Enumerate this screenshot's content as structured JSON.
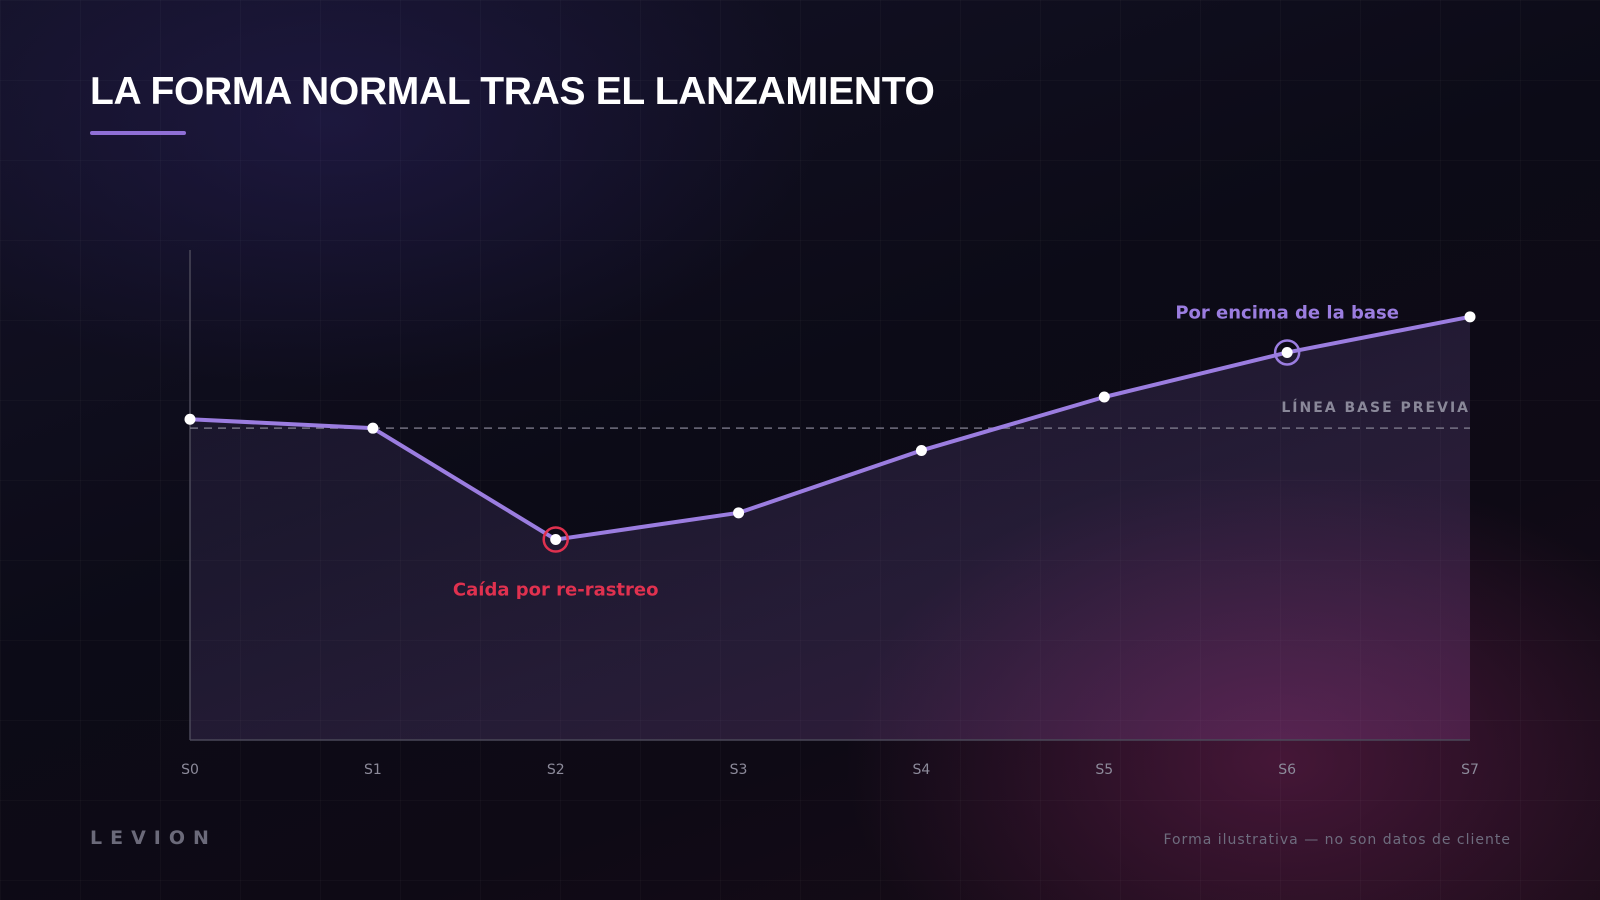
{
  "slide": {
    "title": "LA FORMA NORMAL TRAS EL LANZAMIENTO",
    "brand": "LEVION",
    "footnote": "Forma ilustrativa — no son datos de cliente"
  },
  "colors": {
    "accent": "#9b7de0",
    "dip": "#e0314f",
    "point": "#ffffff",
    "baseline": "#8a8899",
    "axis": "#4a4858",
    "tick": "#8c8a9a"
  },
  "chart_data": {
    "type": "line",
    "title": "",
    "xlabel": "",
    "ylabel": "",
    "categories": [
      "S0",
      "S1",
      "S2",
      "S3",
      "S4",
      "S5",
      "S6",
      "S7"
    ],
    "series": [
      {
        "values": [
          102,
          100,
          75,
          81,
          95,
          107,
          117,
          125
        ]
      }
    ],
    "baseline": {
      "value": 100,
      "label": "LÍNEA BASE PREVIA"
    },
    "ylim": [
      30,
      140
    ],
    "grid": false,
    "area_fill": true,
    "annotations": [
      {
        "index": 2,
        "text": "Caída por re-rastreo",
        "position": "below",
        "color": "#e0314f"
      },
      {
        "index": 6,
        "text": "Por encima de la base",
        "position": "above",
        "color": "#9b7de0"
      }
    ]
  }
}
